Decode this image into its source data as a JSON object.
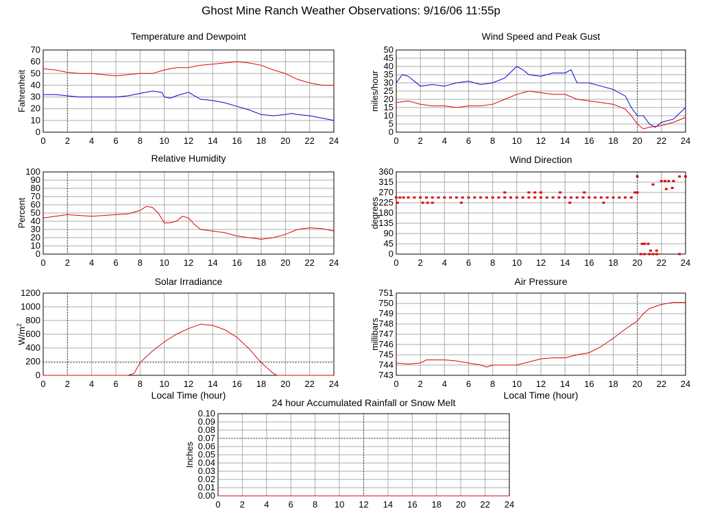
{
  "page_title": "Ghost Mine Ranch Weather Observations: 9/16/06 11:55p",
  "colors": {
    "red": "#dd0000",
    "blue": "#0000cc",
    "grid": "#aaaaaa"
  },
  "chart_data": [
    {
      "id": "temp",
      "type": "line",
      "title": "Temperature and Dewpoint",
      "ylabel": "Fahrenheit",
      "xlabel": "",
      "xlim": [
        0,
        24
      ],
      "ylim": [
        0,
        70
      ],
      "xticks": [
        "0",
        "2",
        "4",
        "6",
        "8",
        "10",
        "12",
        "14",
        "16",
        "18",
        "20",
        "22",
        "24"
      ],
      "yticks": [
        "0",
        "10",
        "20",
        "30",
        "40",
        "50",
        "60",
        "70"
      ],
      "series": [
        {
          "color": "#dd0000",
          "x": [
            0,
            1,
            2,
            3,
            4,
            5,
            6,
            7,
            8,
            9,
            10,
            10.5,
            11,
            12,
            13,
            14,
            15,
            16,
            17,
            18,
            19,
            20,
            21,
            22,
            23,
            24
          ],
          "y": [
            54,
            53,
            51,
            50,
            50,
            49,
            48,
            49,
            50,
            50,
            53,
            54,
            55,
            55,
            57,
            58,
            59,
            60,
            59,
            57,
            53,
            50,
            45,
            42,
            40,
            40
          ]
        },
        {
          "color": "#0000cc",
          "x": [
            0,
            1,
            2,
            3,
            4,
            5,
            6,
            7,
            8,
            9,
            9.8,
            10,
            10.5,
            11,
            12,
            12.5,
            13,
            14,
            15,
            16,
            17,
            18,
            19,
            20,
            20.5,
            21,
            22,
            23,
            24
          ],
          "y": [
            32,
            32,
            31,
            30,
            30,
            30,
            30,
            31,
            33,
            35,
            34,
            30,
            29,
            31,
            34,
            31,
            28,
            27,
            25,
            22,
            19,
            15,
            14,
            15,
            16,
            15,
            14,
            12,
            10
          ]
        }
      ]
    },
    {
      "id": "wind",
      "type": "line",
      "title": "Wind Speed and Peak Gust",
      "ylabel": "miles/hour",
      "xlabel": "",
      "xlim": [
        0,
        24
      ],
      "ylim": [
        0,
        50
      ],
      "xticks": [
        "0",
        "2",
        "4",
        "6",
        "8",
        "10",
        "12",
        "14",
        "16",
        "18",
        "20",
        "22",
        "24"
      ],
      "yticks": [
        "0",
        "5",
        "10",
        "15",
        "20",
        "25",
        "30",
        "35",
        "40",
        "45",
        "50"
      ],
      "series": [
        {
          "color": "#0000cc",
          "x": [
            0,
            0.5,
            1,
            2,
            3,
            4,
            5,
            6,
            7,
            8,
            9,
            10,
            10.5,
            11,
            12,
            13,
            14,
            14.5,
            15,
            16,
            17,
            18,
            19,
            19.5,
            20,
            20.5,
            21,
            21.5,
            22,
            23,
            24
          ],
          "y": [
            30,
            35,
            34,
            28,
            29,
            28,
            30,
            31,
            29,
            30,
            33,
            40,
            38,
            35,
            34,
            36,
            36,
            38,
            30,
            30,
            28,
            26,
            22,
            15,
            10,
            10,
            5,
            3,
            6,
            8,
            15
          ]
        },
        {
          "color": "#dd0000",
          "x": [
            0,
            1,
            2,
            3,
            4,
            5,
            6,
            7,
            8,
            9,
            10,
            11,
            12,
            13,
            14,
            15,
            16,
            17,
            18,
            19,
            19.5,
            20,
            20.5,
            21,
            22,
            23,
            24
          ],
          "y": [
            18,
            19,
            17,
            16,
            16,
            15,
            16,
            16,
            17,
            20,
            23,
            25,
            24,
            23,
            23,
            20,
            19,
            18,
            17,
            14,
            10,
            5,
            2,
            3,
            4,
            6,
            9
          ]
        }
      ]
    },
    {
      "id": "rh",
      "type": "line",
      "title": "Relative Humidity",
      "ylabel": "Percent",
      "xlabel": "",
      "xlim": [
        0,
        24
      ],
      "ylim": [
        0,
        100
      ],
      "xticks": [
        "0",
        "2",
        "4",
        "6",
        "8",
        "10",
        "12",
        "14",
        "16",
        "18",
        "20",
        "22",
        "24"
      ],
      "yticks": [
        "0",
        "10",
        "20",
        "30",
        "40",
        "50",
        "60",
        "70",
        "80",
        "90",
        "100"
      ],
      "series": [
        {
          "color": "#dd0000",
          "x": [
            0,
            1,
            2,
            3,
            4,
            5,
            6,
            7,
            8,
            8.5,
            9,
            9.5,
            10,
            10.5,
            11,
            11.5,
            12,
            12.5,
            13,
            14,
            15,
            16,
            17,
            18,
            19,
            20,
            21,
            22,
            23,
            24
          ],
          "y": [
            44,
            46,
            48,
            47,
            46,
            47,
            48,
            49,
            53,
            58,
            57,
            50,
            38,
            38,
            40,
            46,
            44,
            36,
            30,
            28,
            26,
            22,
            20,
            18,
            20,
            24,
            30,
            32,
            31,
            28
          ]
        }
      ]
    },
    {
      "id": "dir",
      "type": "scatter",
      "title": "Wind Direction",
      "ylabel": "degrees",
      "xlabel": "",
      "xlim": [
        0,
        24
      ],
      "ylim": [
        0,
        360
      ],
      "xticks": [
        "0",
        "2",
        "4",
        "6",
        "8",
        "10",
        "12",
        "14",
        "16",
        "18",
        "20",
        "22",
        "24"
      ],
      "yticks": [
        "0",
        "45",
        "90",
        "135",
        "180",
        "225",
        "270",
        "315",
        "360"
      ],
      "series": [
        {
          "color": "#dd0000",
          "x": [
            0,
            0.3,
            0.6,
            1,
            1.5,
            2,
            2.5,
            3,
            3.5,
            4,
            4.5,
            5,
            5.5,
            6,
            6.5,
            7,
            7.5,
            8,
            8.5,
            9,
            9.5,
            10,
            10.5,
            11,
            11.5,
            12,
            12.5,
            13,
            13.5,
            14,
            14.5,
            15,
            15.5,
            16,
            16.5,
            17,
            17.5,
            18,
            18.5,
            19,
            19.5,
            20,
            20.3,
            20.6,
            21,
            21.3,
            21.6,
            22,
            22.3,
            22.6,
            23,
            23.5,
            24,
            2.2,
            2.6,
            3.0,
            5.4,
            9.0,
            11.0,
            11.5,
            12.0,
            13.6,
            14.4,
            15.6,
            17.2,
            19.8,
            20.0,
            20.4,
            20.6,
            20.9,
            21.1,
            21.6,
            21.3,
            22.4,
            22.9,
            23.5,
            0.1
          ],
          "y": [
            248,
            248,
            248,
            248,
            248,
            248,
            248,
            248,
            248,
            248,
            248,
            248,
            248,
            248,
            248,
            248,
            248,
            248,
            248,
            248,
            248,
            248,
            248,
            248,
            248,
            248,
            248,
            248,
            248,
            248,
            248,
            248,
            248,
            248,
            248,
            248,
            248,
            248,
            248,
            248,
            248,
            270,
            0,
            0,
            0,
            0,
            0,
            320,
            320,
            320,
            320,
            340,
            340,
            225,
            225,
            225,
            225,
            270,
            270,
            270,
            270,
            270,
            225,
            270,
            225,
            270,
            340,
            45,
            45,
            45,
            15,
            15,
            305,
            285,
            290,
            0,
            225
          ]
        }
      ]
    },
    {
      "id": "solar",
      "type": "line",
      "title": "Solar Irradiance",
      "ylabel": "W/m",
      "ylabel_sup": "2",
      "xlabel": "Local Time (hour)",
      "xlim": [
        0,
        24
      ],
      "ylim": [
        0,
        1300
      ],
      "xticks": [
        "0",
        "2",
        "4",
        "6",
        "8",
        "10",
        "12",
        "14",
        "16",
        "18",
        "20",
        "22",
        "24"
      ],
      "yticks": [
        "0",
        "200",
        "400",
        "600",
        "800",
        "1000",
        "1200"
      ],
      "series": [
        {
          "color": "#dd0000",
          "x": [
            0,
            7,
            7.5,
            8,
            9,
            10,
            11,
            12,
            13,
            14,
            15,
            16,
            17,
            18,
            19,
            19.3,
            20,
            24
          ],
          "y": [
            0,
            0,
            30,
            200,
            380,
            530,
            650,
            740,
            810,
            790,
            720,
            600,
            420,
            200,
            30,
            0,
            0,
            0
          ]
        }
      ]
    },
    {
      "id": "pressure",
      "type": "line",
      "title": "Air Pressure",
      "ylabel": "millibars",
      "xlabel": "Local Time (hour)",
      "xlim": [
        0,
        24
      ],
      "ylim": [
        743,
        751
      ],
      "xticks": [
        "0",
        "2",
        "4",
        "6",
        "8",
        "10",
        "12",
        "14",
        "16",
        "18",
        "20",
        "22",
        "24"
      ],
      "yticks": [
        "743",
        "744",
        "745",
        "746",
        "747",
        "748",
        "749",
        "750",
        "751"
      ],
      "series": [
        {
          "color": "#dd0000",
          "x": [
            0,
            1,
            2,
            2.5,
            3,
            4,
            5,
            6,
            7,
            7.5,
            8,
            9,
            10,
            11,
            12,
            13,
            14,
            15,
            16,
            17,
            18,
            19,
            20,
            20.5,
            21,
            22,
            23,
            24
          ],
          "y": [
            744.2,
            744.1,
            744.2,
            744.5,
            744.5,
            744.5,
            744.4,
            744.2,
            744.0,
            743.8,
            744.0,
            744.0,
            744.0,
            744.3,
            744.6,
            744.7,
            744.7,
            745.0,
            745.2,
            745.8,
            746.6,
            747.5,
            748.3,
            749.0,
            749.5,
            749.9,
            750.1,
            750.1
          ]
        }
      ]
    },
    {
      "id": "rain",
      "type": "line",
      "title": "24 hour Accumulated Rainfall or Snow Melt",
      "ylabel": "Inches",
      "xlabel": "",
      "xlim": [
        0,
        24
      ],
      "ylim": [
        0,
        0.1
      ],
      "xticks": [
        "0",
        "2",
        "4",
        "6",
        "8",
        "10",
        "12",
        "14",
        "16",
        "18",
        "20",
        "22",
        "24"
      ],
      "yticks": [
        "0.00",
        "0.01",
        "0.02",
        "0.03",
        "0.04",
        "0.05",
        "0.06",
        "0.07",
        "0.08",
        "0.09",
        "0.10"
      ],
      "series": [
        {
          "color": "#dd0000",
          "x": [
            0,
            24
          ],
          "y": [
            0,
            0
          ]
        }
      ]
    }
  ]
}
